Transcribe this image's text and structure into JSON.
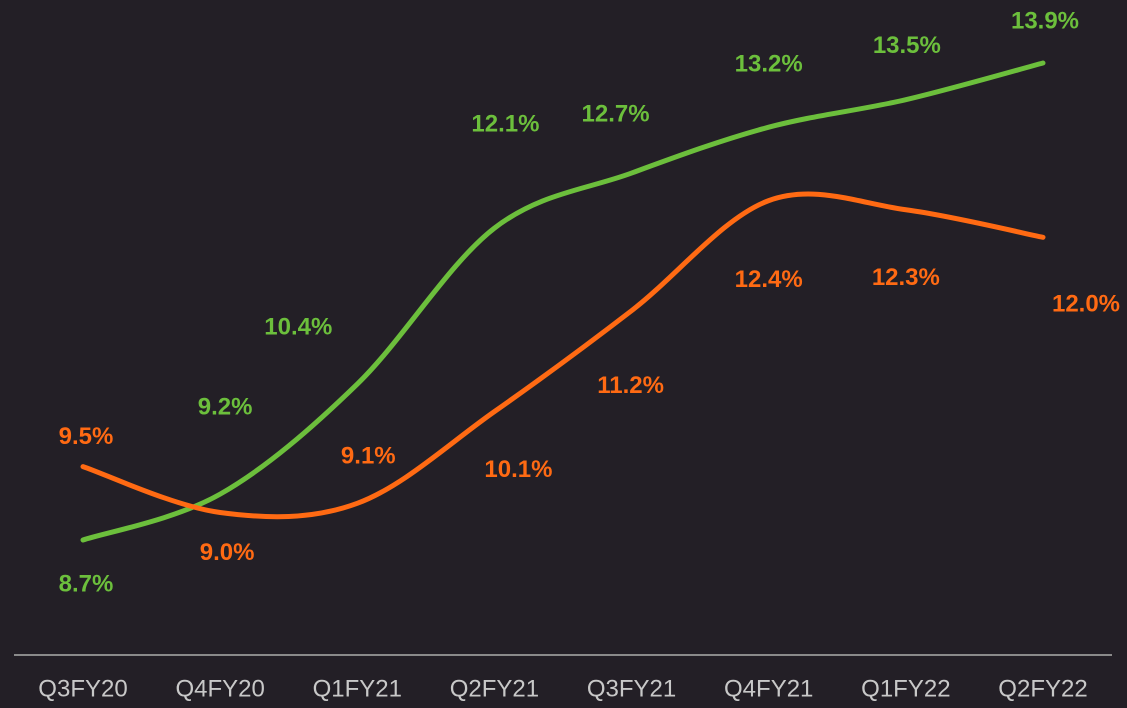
{
  "chart_data": {
    "type": "line",
    "categories": [
      "Q3FY20",
      "Q4FY20",
      "Q1FY21",
      "Q2FY21",
      "Q3FY21",
      "Q4FY21",
      "Q1FY22",
      "Q2FY22"
    ],
    "series": [
      {
        "color": "#6cbf3c",
        "values": [
          8.7,
          9.2,
          10.4,
          12.1,
          12.7,
          13.2,
          13.5,
          13.9
        ],
        "value_labels": [
          "8.7%",
          "9.2%",
          "10.4%",
          "12.1%",
          "12.7%",
          "13.2%",
          "13.5%",
          "13.9%"
        ]
      },
      {
        "color": "#ff6a13",
        "values": [
          9.5,
          9.0,
          9.1,
          10.1,
          11.2,
          12.4,
          12.3,
          12.0
        ],
        "value_labels": [
          "9.5%",
          "9.0%",
          "9.1%",
          "10.1%",
          "11.2%",
          "12.4%",
          "12.3%",
          "12.0%"
        ]
      }
    ]
  }
}
